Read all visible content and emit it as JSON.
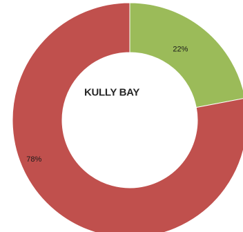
{
  "chart_data": {
    "type": "pie",
    "variant": "donut",
    "title": "KULLY BAY",
    "slices": [
      {
        "value": 22,
        "label": "22%",
        "color": "#9bbb59"
      },
      {
        "value": 78,
        "label": "78%",
        "color": "#c0504d"
      }
    ],
    "legend": "none"
  }
}
